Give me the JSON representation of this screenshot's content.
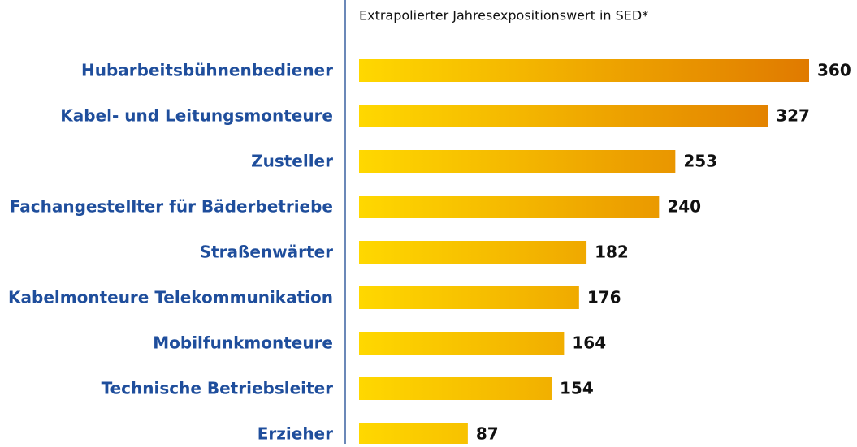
{
  "chart_data": {
    "type": "barh",
    "title": "Extrapolierter Jahresexpositionswert in SED*",
    "categories": [
      "Hubarbeitsbühnenbediener",
      "Kabel- und Leitungsmonteure",
      "Zusteller",
      "Fachangestellter für Bäderbetriebe",
      "Straßenwärter",
      "Kabelmonteure Telekommunikation",
      "Mobilfunkmonteure",
      "Technische Betriebsleiter",
      "Erzieher"
    ],
    "values": [
      360,
      327,
      253,
      240,
      182,
      176,
      164,
      154,
      87
    ],
    "colors": [
      "#ffd800",
      "#e07a00"
    ],
    "category_color": "#1f4e9c",
    "grid": false
  }
}
